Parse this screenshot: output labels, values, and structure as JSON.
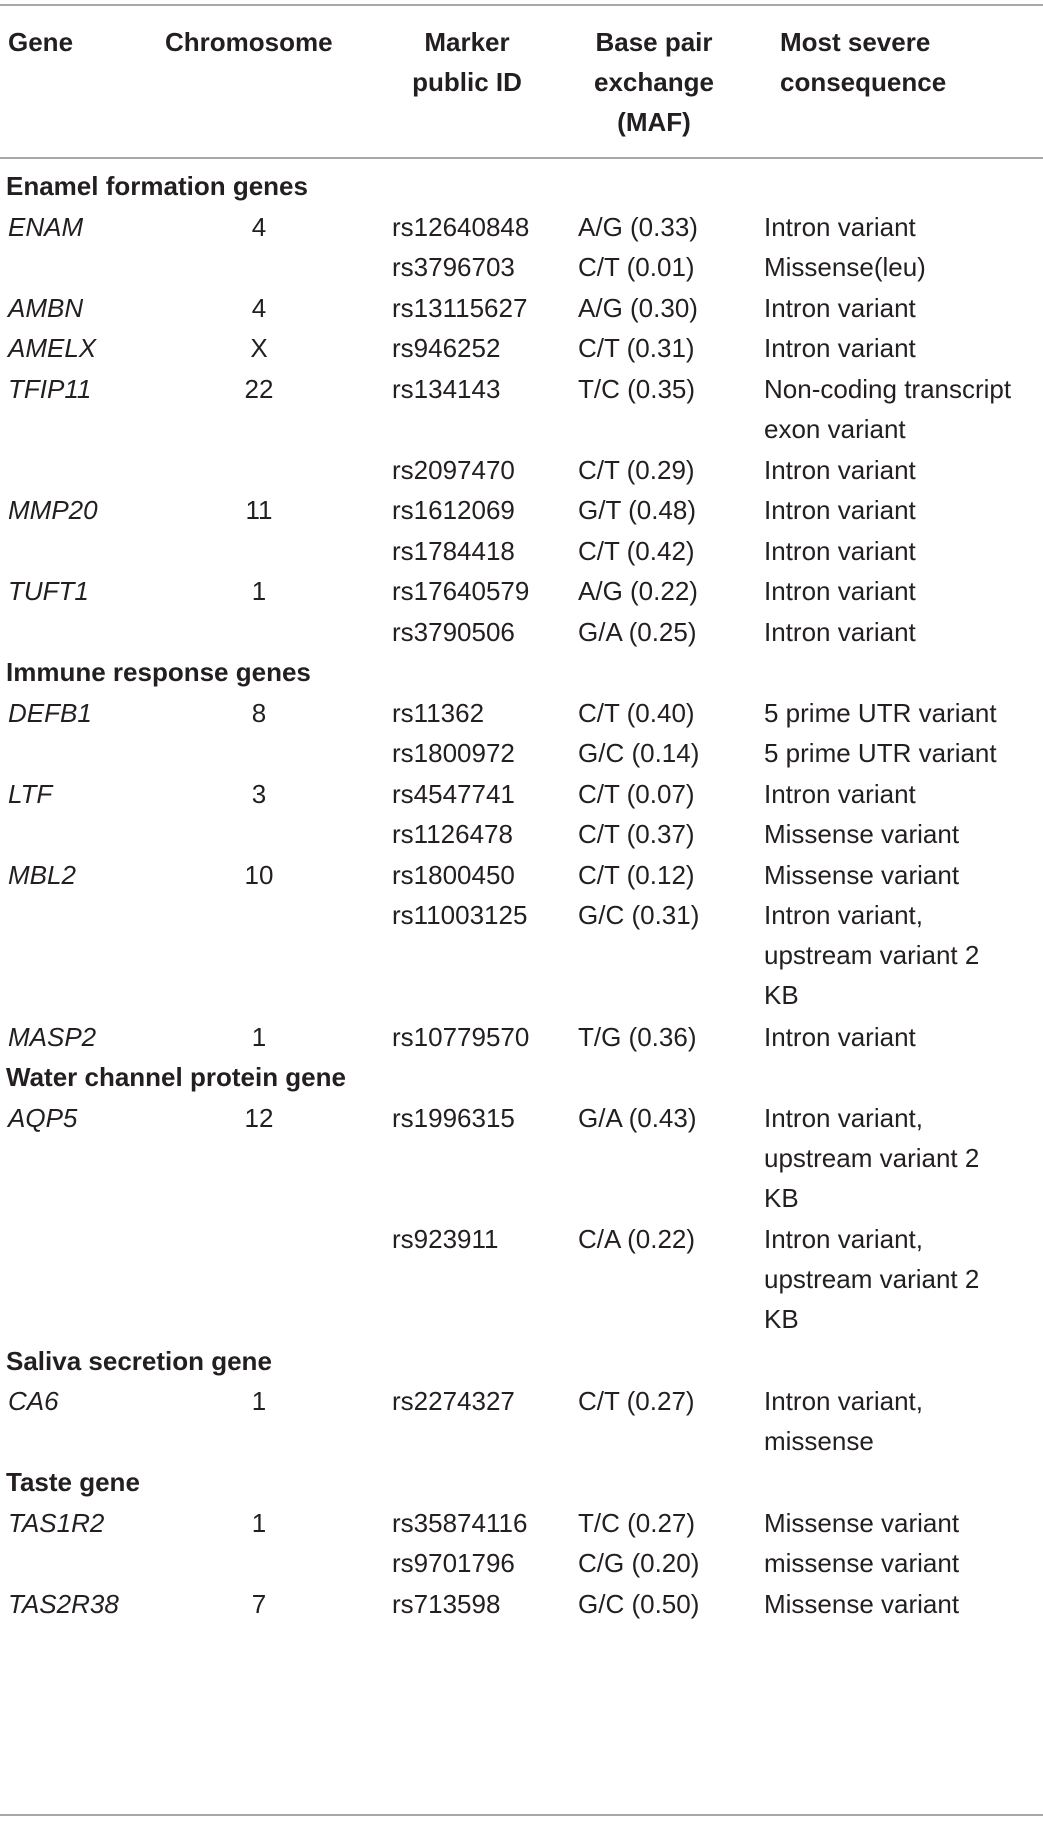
{
  "table": {
    "headers": {
      "gene": "Gene",
      "chromosome": "Chromosome",
      "marker": [
        "Marker",
        "public ID"
      ],
      "base_pair": [
        "Base pair",
        "exchange",
        "(MAF)"
      ],
      "consequence": [
        "Most severe",
        "consequence"
      ]
    },
    "sections": [
      {
        "title": "Enamel formation genes",
        "rows": [
          {
            "gene": "ENAM",
            "chromosome": "4",
            "marker": "rs12640848",
            "base_pair": "A/G (0.33)",
            "consequence": [
              "Intron variant"
            ]
          },
          {
            "gene": "",
            "chromosome": "",
            "marker": "rs3796703",
            "base_pair": "C/T (0.01)",
            "consequence": [
              "Missense(leu)"
            ]
          },
          {
            "gene": "AMBN",
            "chromosome": "4",
            "marker": "rs13115627",
            "base_pair": "A/G (0.30)",
            "consequence": [
              "Intron variant"
            ]
          },
          {
            "gene": "AMELX",
            "chromosome": "X",
            "marker": "rs946252",
            "base_pair": "C/T (0.31)",
            "consequence": [
              "Intron variant"
            ]
          },
          {
            "gene": "TFIP11",
            "chromosome": "22",
            "marker": "rs134143",
            "base_pair": "T/C (0.35)",
            "consequence": [
              "Non-coding transcript",
              "exon variant"
            ]
          },
          {
            "gene": "",
            "chromosome": "",
            "marker": "rs2097470",
            "base_pair": "C/T (0.29)",
            "consequence": [
              "Intron variant"
            ]
          },
          {
            "gene": "MMP20",
            "chromosome": "11",
            "marker": "rs1612069",
            "base_pair": "G/T (0.48)",
            "consequence": [
              "Intron variant"
            ]
          },
          {
            "gene": "",
            "chromosome": "",
            "marker": "rs1784418",
            "base_pair": "C/T (0.42)",
            "consequence": [
              "Intron variant"
            ]
          },
          {
            "gene": "TUFT1",
            "chromosome": "1",
            "marker": "rs17640579",
            "base_pair": "A/G (0.22)",
            "consequence": [
              "Intron variant"
            ]
          },
          {
            "gene": "",
            "chromosome": "",
            "marker": "rs3790506",
            "base_pair": "G/A (0.25)",
            "consequence": [
              "Intron variant"
            ]
          }
        ]
      },
      {
        "title": "Immune response genes",
        "rows": [
          {
            "gene": "DEFB1",
            "chromosome": "8",
            "marker": "rs11362",
            "base_pair": "C/T (0.40)",
            "consequence": [
              "5 prime UTR variant"
            ]
          },
          {
            "gene": "",
            "chromosome": "",
            "marker": "rs1800972",
            "base_pair": "G/C (0.14)",
            "consequence": [
              "5 prime UTR variant"
            ]
          },
          {
            "gene": "LTF",
            "chromosome": "3",
            "marker": "rs4547741",
            "base_pair": "C/T (0.07)",
            "consequence": [
              "Intron variant"
            ]
          },
          {
            "gene": "",
            "chromosome": "",
            "marker": "rs1126478",
            "base_pair": "C/T (0.37)",
            "consequence": [
              "Missense variant"
            ]
          },
          {
            "gene": "MBL2",
            "chromosome": "10",
            "marker": "rs1800450",
            "base_pair": "C/T (0.12)",
            "consequence": [
              "Missense variant"
            ]
          },
          {
            "gene": "",
            "chromosome": "",
            "marker": "rs11003125",
            "base_pair": "G/C (0.31)",
            "consequence": [
              "Intron variant,",
              "upstream variant 2",
              "KB"
            ]
          },
          {
            "gene": "MASP2",
            "chromosome": "1",
            "marker": "rs10779570",
            "base_pair": "T/G (0.36)",
            "consequence": [
              "Intron variant"
            ]
          }
        ]
      },
      {
        "title": "Water channel protein gene",
        "rows": [
          {
            "gene": "AQP5",
            "chromosome": "12",
            "marker": "rs1996315",
            "base_pair": "G/A (0.43)",
            "consequence": [
              "Intron variant,",
              "upstream variant 2",
              "KB"
            ]
          },
          {
            "gene": "",
            "chromosome": "",
            "marker": "rs923911",
            "base_pair": "C/A (0.22)",
            "consequence": [
              "Intron variant,",
              "upstream variant 2",
              "KB"
            ]
          }
        ]
      },
      {
        "title": "Saliva secretion gene",
        "rows": [
          {
            "gene": "CA6",
            "chromosome": "1",
            "marker": "rs2274327",
            "base_pair": "C/T (0.27)",
            "consequence": [
              "Intron variant,",
              "missense"
            ]
          }
        ]
      },
      {
        "title": "Taste gene",
        "rows": [
          {
            "gene": "TAS1R2",
            "chromosome": "1",
            "marker": "rs35874116",
            "base_pair": "T/C (0.27)",
            "consequence": [
              "Missense variant"
            ]
          },
          {
            "gene": "",
            "chromosome": "",
            "marker": "rs9701796",
            "base_pair": "C/G (0.20)",
            "consequence": [
              "missense variant"
            ]
          },
          {
            "gene": "TAS2R38",
            "chromosome": "7",
            "marker": "rs713598",
            "base_pair": "G/C (0.50)",
            "consequence": [
              "Missense variant"
            ]
          }
        ]
      }
    ]
  }
}
